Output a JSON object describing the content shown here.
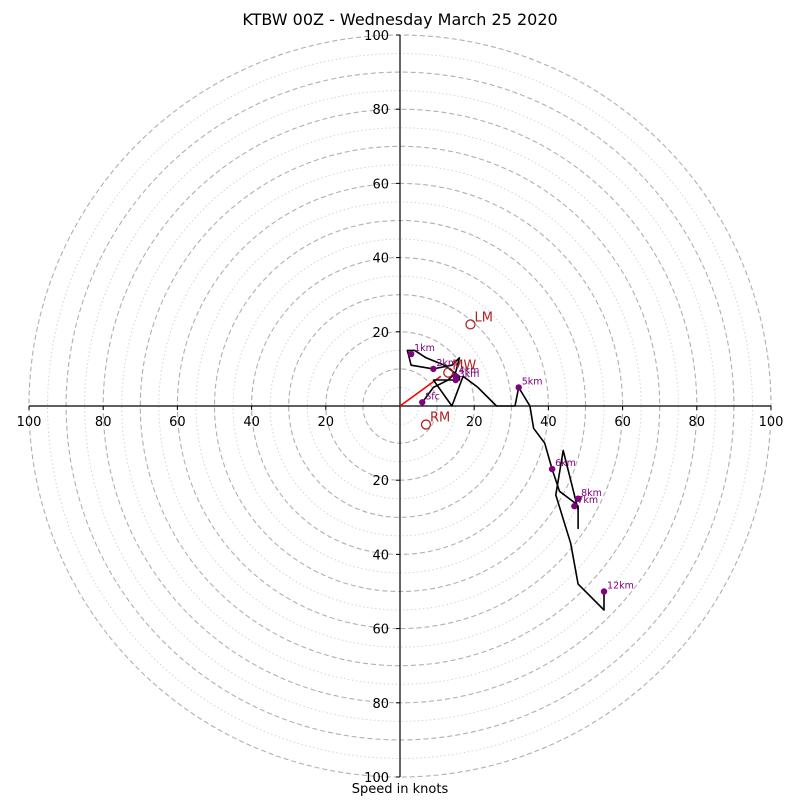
{
  "chart_data": {
    "type": "hodograph",
    "title": "KTBW 00Z - Wednesday March 25 2020",
    "xlabel": "Speed in knots",
    "range": [
      -100,
      100
    ],
    "grid": {
      "major_rings": [
        10,
        20,
        30,
        40,
        50,
        60,
        70,
        80,
        90,
        100
      ],
      "minor_rings": [
        5,
        15,
        25,
        35,
        45,
        55,
        65,
        75,
        85,
        95
      ]
    },
    "tick_labels": {
      "x": [
        {
          "v": -100,
          "t": "100"
        },
        {
          "v": -80,
          "t": "80"
        },
        {
          "v": -60,
          "t": "60"
        },
        {
          "v": -40,
          "t": "40"
        },
        {
          "v": -20,
          "t": "20"
        },
        {
          "v": 20,
          "t": "20"
        },
        {
          "v": 40,
          "t": "40"
        },
        {
          "v": 60,
          "t": "60"
        },
        {
          "v": 80,
          "t": "80"
        },
        {
          "v": 100,
          "t": "100"
        }
      ],
      "y": [
        {
          "v": 100,
          "t": "100"
        },
        {
          "v": 80,
          "t": "80"
        },
        {
          "v": 60,
          "t": "60"
        },
        {
          "v": 40,
          "t": "40"
        },
        {
          "v": 20,
          "t": "20"
        },
        {
          "v": -20,
          "t": "20"
        },
        {
          "v": -40,
          "t": "40"
        },
        {
          "v": -60,
          "t": "60"
        },
        {
          "v": -80,
          "t": "80"
        },
        {
          "v": -100,
          "t": "100"
        }
      ]
    },
    "hodograph_trace": [
      [
        6,
        1
      ],
      [
        9,
        5
      ],
      [
        13,
        7
      ],
      [
        15,
        9
      ],
      [
        16,
        13
      ],
      [
        14,
        11
      ],
      [
        9,
        10
      ],
      [
        3,
        11
      ],
      [
        2,
        15
      ],
      [
        4,
        15
      ],
      [
        7,
        13
      ],
      [
        12,
        11
      ],
      [
        16,
        8
      ],
      [
        16,
        7
      ],
      [
        12,
        7
      ],
      [
        9,
        7
      ],
      [
        14,
        0
      ],
      [
        17,
        8
      ],
      [
        21,
        5
      ],
      [
        26,
        0
      ],
      [
        31,
        0
      ],
      [
        32,
        5
      ],
      [
        35,
        0
      ],
      [
        36,
        -6
      ],
      [
        39,
        -10
      ],
      [
        41,
        -17
      ],
      [
        43,
        -23
      ],
      [
        47,
        -26
      ],
      [
        48,
        -27
      ],
      [
        48,
        -33
      ],
      [
        48,
        -28
      ],
      [
        46,
        -20
      ],
      [
        44,
        -12
      ],
      [
        42,
        -24
      ],
      [
        46,
        -37
      ],
      [
        48,
        -48
      ],
      [
        55,
        -55
      ],
      [
        55,
        -50
      ]
    ],
    "height_markers": [
      {
        "label": "Sfc",
        "u": 6,
        "v": 1
      },
      {
        "label": "1km",
        "u": 3,
        "v": 14
      },
      {
        "label": "2km",
        "u": 9,
        "v": 10
      },
      {
        "label": "3km",
        "u": 15,
        "v": 7
      },
      {
        "label": "4km",
        "u": 15,
        "v": 8
      },
      {
        "label": "5km",
        "u": 32,
        "v": 5
      },
      {
        "label": "6km",
        "u": 41,
        "v": -17
      },
      {
        "label": "7km",
        "u": 47,
        "v": -27
      },
      {
        "label": "8km",
        "u": 48,
        "v": -25
      },
      {
        "label": "12km",
        "u": 55,
        "v": -50
      }
    ],
    "storm_motion": [
      {
        "label": "LM",
        "u": 19,
        "v": 22
      },
      {
        "label": "RM",
        "u": 7,
        "v": -5
      },
      {
        "label": "MW",
        "u": 13,
        "v": 9
      }
    ],
    "shear_vector": {
      "u": 11,
      "v": 8
    },
    "colors": {
      "trace": "#000000",
      "markers": "#800080",
      "storm_motion": "#b22222",
      "shear_vector": "#ff0000",
      "grid": "#b0b0b0",
      "minor_grid": "#d4d4d4"
    }
  }
}
